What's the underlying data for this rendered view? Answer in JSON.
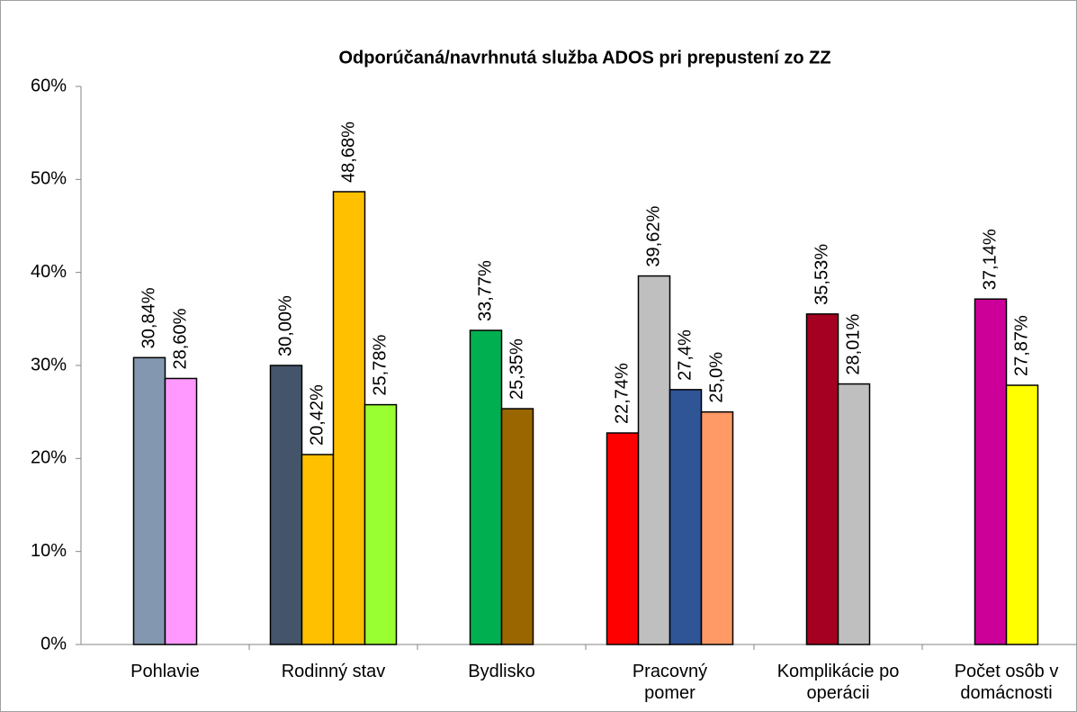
{
  "chart_data": {
    "type": "grouped-bar",
    "title": "Odporúčaná/navrhnutá služba ADOS pri prepustení zo ZZ",
    "categories": [
      "Pohlavie",
      "Rodinný stav",
      "Bydlisko",
      "Pracovný\npomer",
      "Komplikácie po\noperácii",
      "Počet osôb v\ndomácnosti"
    ],
    "groups": [
      {
        "values": [
          30.84,
          28.6
        ],
        "value_labels": [
          "30,84%",
          "28,60%"
        ],
        "colors": [
          "#8497b0",
          "#ff99ff"
        ]
      },
      {
        "values": [
          30.0,
          20.42,
          48.68,
          25.78
        ],
        "value_labels": [
          "30,00%",
          "20,42%",
          "48,68%",
          "25,78%"
        ],
        "colors": [
          "#44546a",
          "#ffc000",
          "#ffc000",
          "#99ff33"
        ]
      },
      {
        "values": [
          33.77,
          25.35
        ],
        "value_labels": [
          "33,77%",
          "25,35%"
        ],
        "colors": [
          "#00b050",
          "#996600"
        ]
      },
      {
        "values": [
          22.74,
          39.62,
          27.4,
          25.0
        ],
        "value_labels": [
          "22,74%",
          "39,62%",
          "27,4%",
          "25,0%"
        ],
        "colors": [
          "#ff0000",
          "#bfbfbf",
          "#2f5597",
          "#ff9966"
        ]
      },
      {
        "values": [
          35.53,
          28.01
        ],
        "value_labels": [
          "35,53%",
          "28,01%"
        ],
        "colors": [
          "#a50021",
          "#bfbfbf"
        ]
      },
      {
        "values": [
          37.14,
          27.87
        ],
        "value_labels": [
          "37,14%",
          "27,87%"
        ],
        "colors": [
          "#cc0099",
          "#ffff00"
        ]
      }
    ],
    "ylim": [
      0,
      60
    ],
    "yticks": [
      {
        "value": 0,
        "label": "0%"
      },
      {
        "value": 10,
        "label": "10%"
      },
      {
        "value": 20,
        "label": "20%"
      },
      {
        "value": 30,
        "label": "30%"
      },
      {
        "value": 40,
        "label": "40%"
      },
      {
        "value": 50,
        "label": "50%"
      },
      {
        "value": 60,
        "label": "60%"
      }
    ]
  }
}
